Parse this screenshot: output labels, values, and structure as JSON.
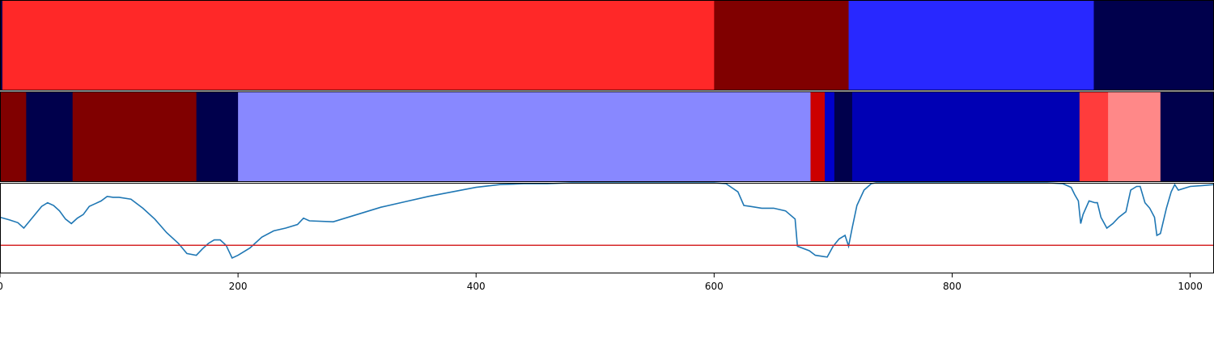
{
  "chart_data": [
    {
      "type": "bar",
      "orientation": "horizontal-segments",
      "panel": "segmentation-1",
      "xlim": [
        0,
        1020
      ],
      "segments": [
        {
          "start": 0,
          "end": 2,
          "color": "#00004c"
        },
        {
          "start": 2,
          "end": 600,
          "color": "#ff2828"
        },
        {
          "start": 600,
          "end": 713,
          "color": "#800000"
        },
        {
          "start": 713,
          "end": 919,
          "color": "#2828ff"
        },
        {
          "start": 919,
          "end": 1020,
          "color": "#00004c"
        }
      ]
    },
    {
      "type": "bar",
      "orientation": "horizontal-segments",
      "panel": "segmentation-2",
      "xlim": [
        0,
        1020
      ],
      "segments": [
        {
          "start": 0,
          "end": 22,
          "color": "#800000"
        },
        {
          "start": 22,
          "end": 61,
          "color": "#00004c"
        },
        {
          "start": 61,
          "end": 165,
          "color": "#800000"
        },
        {
          "start": 165,
          "end": 200,
          "color": "#00004c"
        },
        {
          "start": 200,
          "end": 681,
          "color": "#8888ff"
        },
        {
          "start": 681,
          "end": 693,
          "color": "#cc0000"
        },
        {
          "start": 693,
          "end": 701,
          "color": "#0000cc"
        },
        {
          "start": 701,
          "end": 716,
          "color": "#00004c"
        },
        {
          "start": 716,
          "end": 907,
          "color": "#0000b4"
        },
        {
          "start": 907,
          "end": 931,
          "color": "#ff3c3c"
        },
        {
          "start": 931,
          "end": 975,
          "color": "#ff8888"
        },
        {
          "start": 975,
          "end": 1020,
          "color": "#00004c"
        }
      ]
    },
    {
      "type": "line",
      "panel": "signal",
      "xlim": [
        0,
        1020
      ],
      "ylim": [
        0,
        1
      ],
      "threshold": 0.31,
      "colors": {
        "line": "#1f77b4",
        "threshold": "#d62728"
      },
      "x_ticks": [
        0,
        200,
        400,
        600,
        800,
        1000
      ],
      "series": [
        {
          "x": [
            0,
            8,
            15,
            20,
            25,
            30,
            35,
            40,
            45,
            50,
            55,
            60,
            65,
            70,
            75,
            80,
            85,
            90,
            95,
            100,
            110,
            120,
            130,
            140,
            150,
            157,
            165,
            170,
            175,
            180,
            185,
            190,
            195,
            200,
            210,
            220,
            230,
            240,
            250,
            255,
            260,
            280,
            300,
            320,
            340,
            360,
            380,
            400,
            420,
            440,
            460,
            480,
            500,
            520,
            540,
            560,
            580,
            600,
            610,
            620,
            625,
            630,
            640,
            650,
            660,
            668,
            670,
            680,
            685,
            690,
            695,
            700,
            705,
            710,
            713,
            716,
            720,
            726,
            732,
            736,
            760,
            780,
            800,
            820,
            840,
            860,
            880,
            893,
            900,
            903,
            906,
            908,
            910,
            915,
            920,
            922,
            925,
            930,
            935,
            940,
            946,
            950,
            955,
            958,
            962,
            966,
            970,
            972,
            975,
            980,
            984,
            987,
            990,
            1000,
            1010,
            1020
          ],
          "y": [
            0.62,
            0.59,
            0.56,
            0.5,
            0.58,
            0.66,
            0.74,
            0.78,
            0.75,
            0.69,
            0.6,
            0.55,
            0.61,
            0.65,
            0.74,
            0.77,
            0.8,
            0.85,
            0.84,
            0.84,
            0.82,
            0.72,
            0.6,
            0.45,
            0.33,
            0.22,
            0.2,
            0.27,
            0.33,
            0.37,
            0.37,
            0.31,
            0.17,
            0.2,
            0.28,
            0.4,
            0.47,
            0.5,
            0.54,
            0.61,
            0.58,
            0.57,
            0.65,
            0.73,
            0.79,
            0.85,
            0.9,
            0.95,
            0.98,
            0.99,
            0.99,
            1.0,
            1.0,
            1.0,
            1.0,
            1.0,
            1.0,
            1.0,
            0.99,
            0.9,
            0.75,
            0.74,
            0.72,
            0.72,
            0.69,
            0.6,
            0.3,
            0.25,
            0.2,
            0.19,
            0.18,
            0.3,
            0.38,
            0.42,
            0.3,
            0.5,
            0.75,
            0.92,
            0.99,
            1.0,
            1.0,
            1.0,
            1.0,
            1.0,
            1.0,
            1.0,
            1.0,
            0.99,
            0.95,
            0.87,
            0.8,
            0.55,
            0.65,
            0.8,
            0.78,
            0.78,
            0.62,
            0.5,
            0.55,
            0.62,
            0.68,
            0.92,
            0.96,
            0.96,
            0.78,
            0.72,
            0.62,
            0.42,
            0.44,
            0.72,
            0.9,
            0.98,
            0.92,
            0.96,
            0.97,
            0.98
          ]
        }
      ]
    }
  ]
}
